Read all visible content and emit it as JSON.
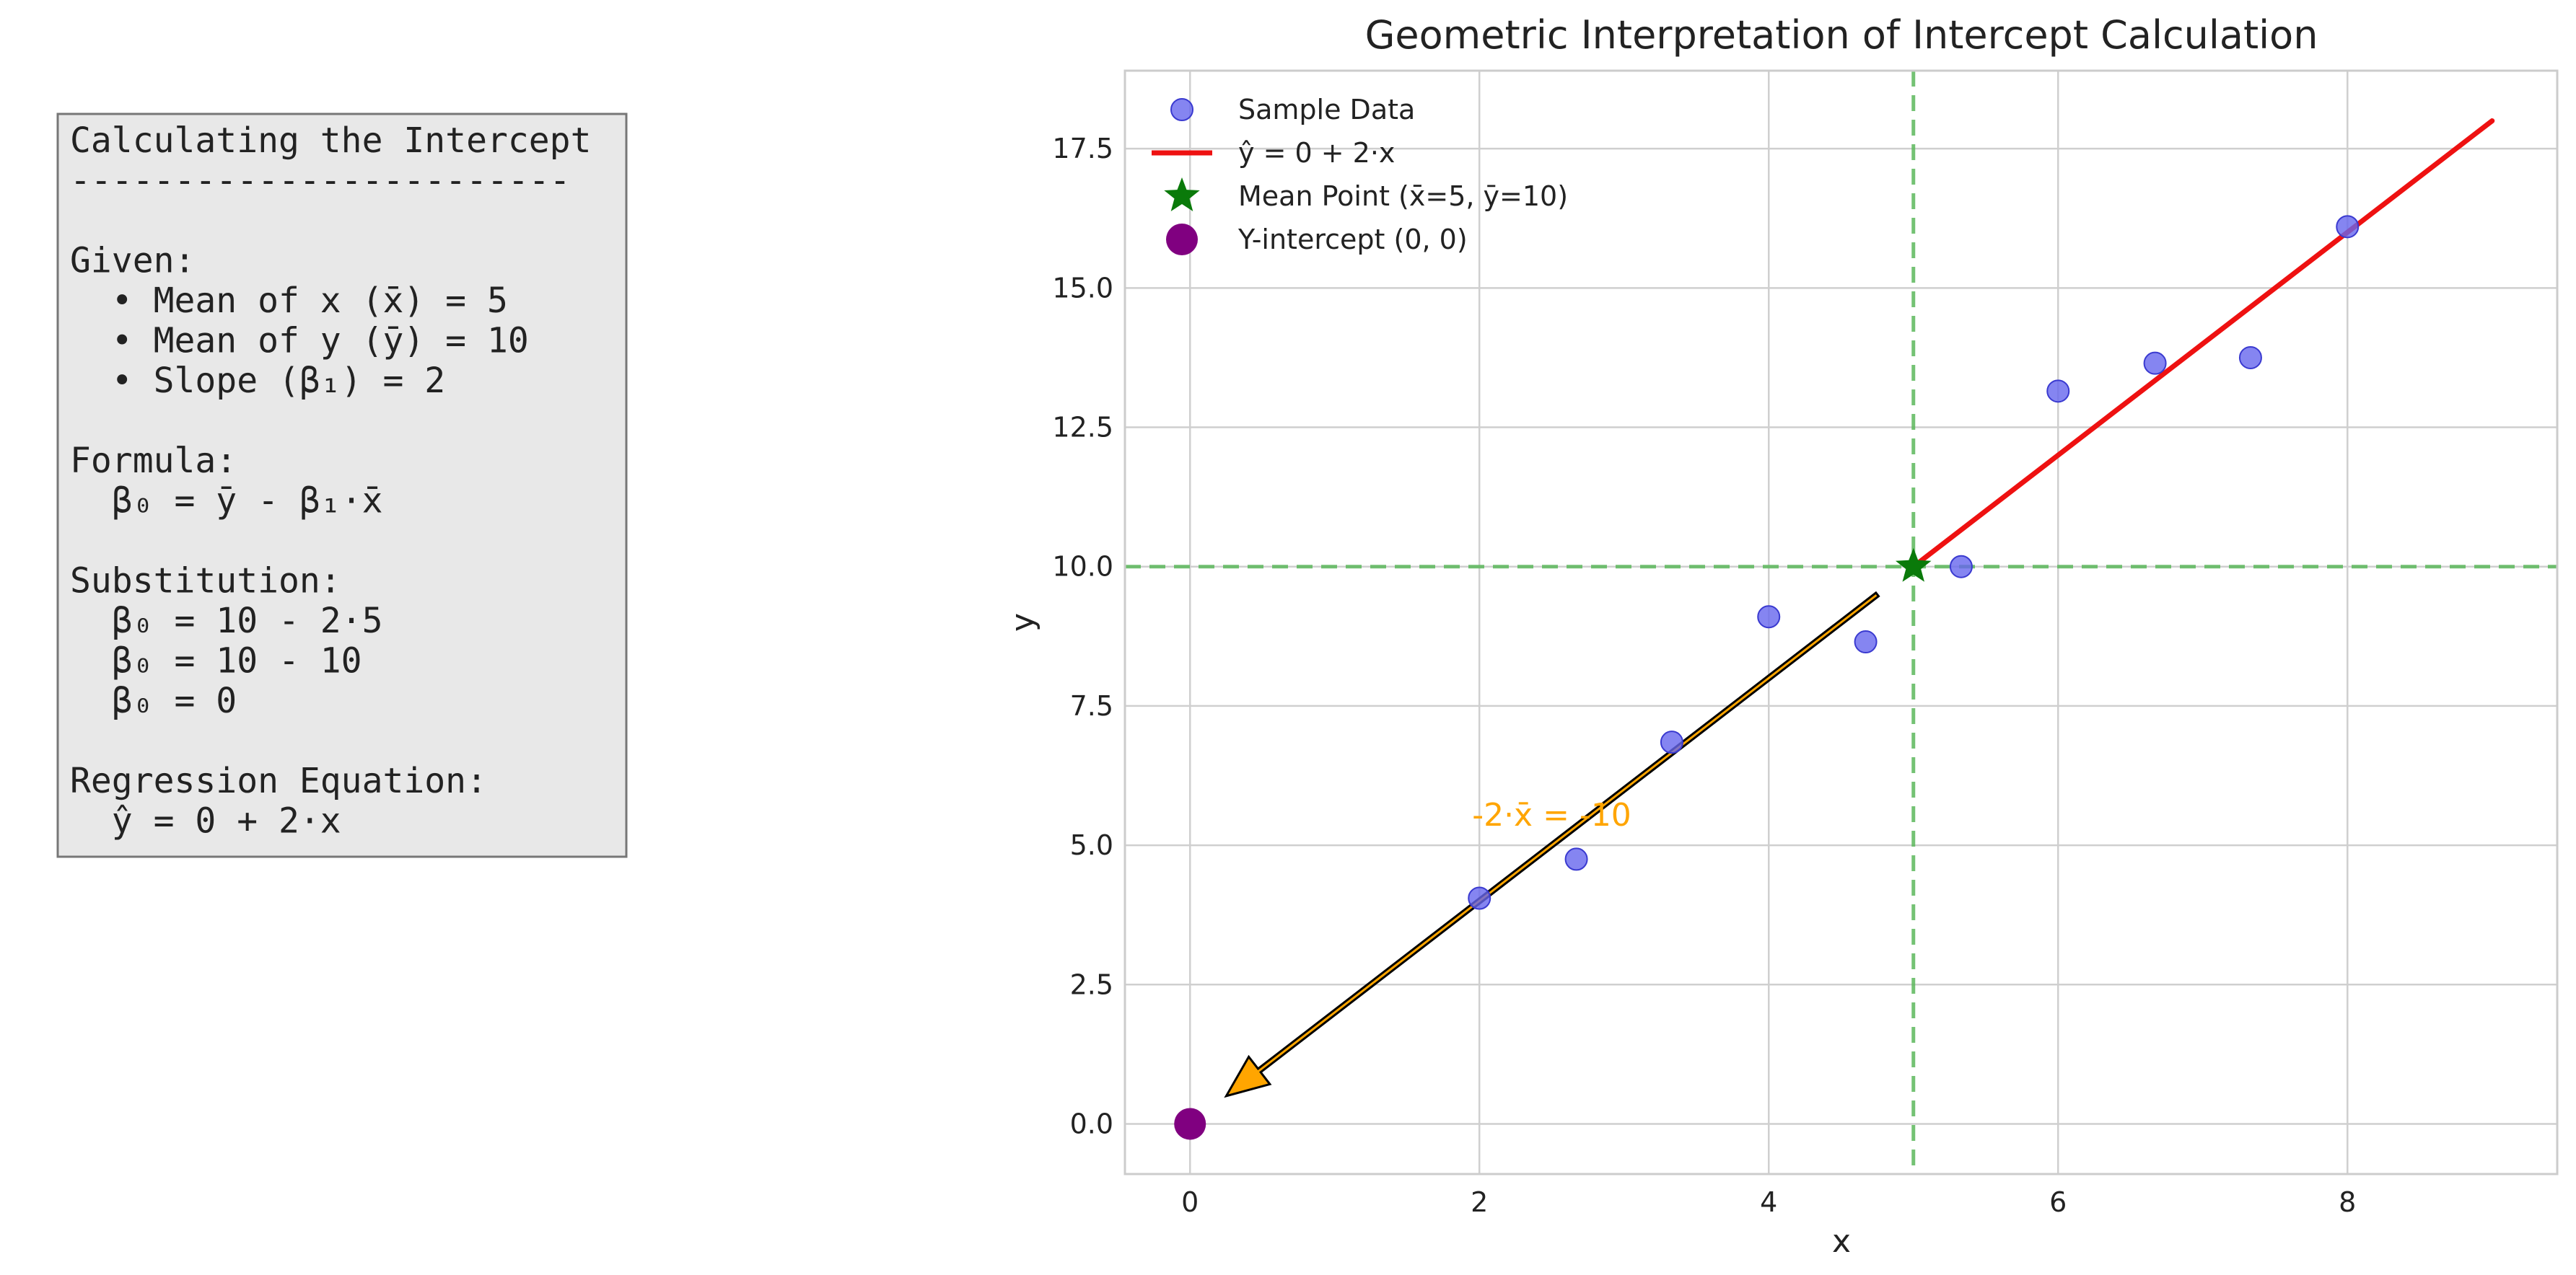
{
  "calc_box": {
    "lines": [
      "Calculating the Intercept",
      "------------------------",
      "",
      "Given:",
      "  • Mean of x (x̄) = 5",
      "  • Mean of y (ȳ) = 10",
      "  • Slope (β₁) = 2",
      "",
      "Formula:",
      "  β₀ = ȳ - β₁·x̄",
      "",
      "Substitution:",
      "  β₀ = 10 - 2·5",
      "  β₀ = 10 - 10",
      "  β₀ = 0",
      "",
      "Regression Equation:",
      "  ŷ = 0 + 2·x"
    ],
    "background": "#e8e8e8",
    "border": "#777777"
  },
  "chart_data": {
    "type": "scatter",
    "title": "Geometric Interpretation of Intercept Calculation",
    "xlabel": "x",
    "ylabel": "y",
    "xlim": [
      -0.45,
      9.45
    ],
    "ylim": [
      -0.9,
      18.9
    ],
    "xticks": [
      0,
      2,
      4,
      6,
      8
    ],
    "xtick_labels": [
      "0",
      "2",
      "4",
      "6",
      "8"
    ],
    "yticks": [
      0,
      2.5,
      5,
      7.5,
      10,
      12.5,
      15,
      17.5
    ],
    "ytick_labels": [
      "0.0",
      "2.5",
      "5.0",
      "7.5",
      "10.0",
      "12.5",
      "15.0",
      "17.5"
    ],
    "grid": true,
    "legend_position": "top-left",
    "series": [
      {
        "name": "Sample Data",
        "kind": "scatter",
        "color": "#6666ee",
        "points": [
          [
            2.0,
            4.05
          ],
          [
            2.67,
            4.75
          ],
          [
            3.33,
            6.85
          ],
          [
            4.0,
            9.1
          ],
          [
            4.67,
            8.65
          ],
          [
            5.33,
            10.0
          ],
          [
            6.0,
            13.15
          ],
          [
            6.67,
            13.65
          ],
          [
            7.33,
            13.75
          ],
          [
            8.0,
            16.1
          ]
        ]
      },
      {
        "name": "ŷ = 0 + 2·x",
        "kind": "line",
        "color": "#ee1111",
        "points": [
          [
            5,
            10
          ],
          [
            9,
            18
          ]
        ]
      },
      {
        "name": "Mean Point (x̄=5, ȳ=10)",
        "kind": "star",
        "color": "#0a7a0a",
        "points": [
          [
            5,
            10
          ]
        ]
      },
      {
        "name": "Y-intercept (0, 0)",
        "kind": "big-dot",
        "color": "#800080",
        "points": [
          [
            0,
            0
          ]
        ]
      }
    ],
    "reference_lines": {
      "vertical_x": 5,
      "horizontal_y": 10,
      "color": "#5cb85c"
    },
    "arrow": {
      "from": [
        4.75,
        9.5
      ],
      "to": [
        0.25,
        0.5
      ],
      "color": "#ffa500",
      "label": "-2·x̄ = -10",
      "label_at": [
        1.95,
        5.35
      ],
      "label_color": "#ffa500"
    }
  }
}
